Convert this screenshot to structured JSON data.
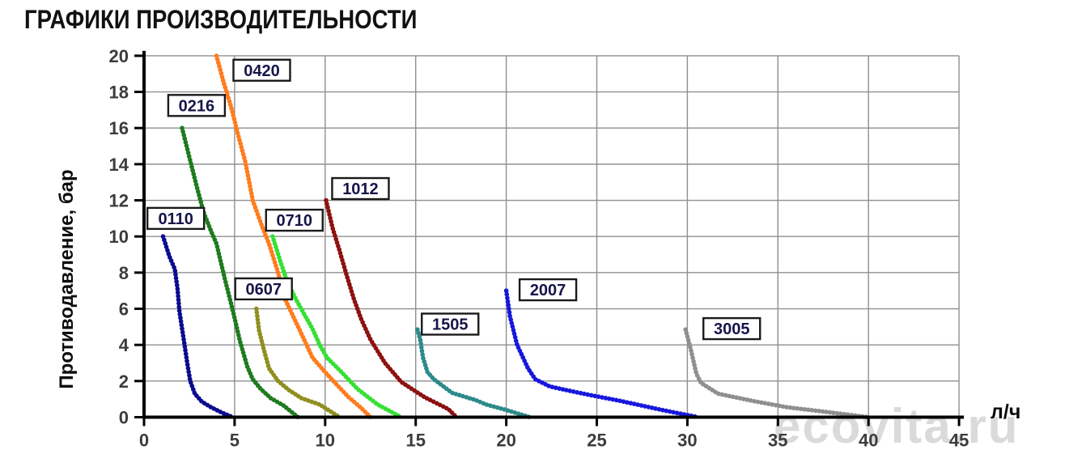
{
  "page": {
    "title": "ГРАФИКИ ПРОИЗВОДИТЕЛЬНОСТИ",
    "watermark": "ecovita.ru"
  },
  "chart_data": {
    "type": "line",
    "title": "ГРАФИКИ ПРОИЗВОДИТЕЛЬНОСТИ",
    "xlabel": "л/ч",
    "ylabel": "Противодавление, бар",
    "xlim": [
      0,
      45
    ],
    "ylim": [
      0,
      20
    ],
    "x_ticks": [
      0,
      5,
      10,
      15,
      20,
      25,
      30,
      35,
      40,
      45
    ],
    "y_ticks": [
      0,
      2,
      4,
      6,
      8,
      10,
      12,
      14,
      16,
      18,
      20
    ],
    "grid": true,
    "legend_position": "boxed labels next to each curve",
    "grid_color": "#8f8f8f",
    "axis_color": "#000000",
    "tick_label_color": "#3c3c3c",
    "series_label_text_color": "#15154a",
    "series": [
      {
        "name": "0110",
        "color": "#0b0b8f",
        "label_pos": [
          1.75,
          11.0
        ],
        "points": [
          [
            1.05,
            10
          ],
          [
            1.4,
            8.9
          ],
          [
            1.7,
            8.2
          ],
          [
            1.85,
            7.1
          ],
          [
            1.95,
            5.9
          ],
          [
            2.1,
            4.9
          ],
          [
            2.25,
            3.9
          ],
          [
            2.4,
            2.9
          ],
          [
            2.55,
            2.0
          ],
          [
            2.8,
            1.3
          ],
          [
            3.2,
            0.85
          ],
          [
            3.7,
            0.55
          ],
          [
            4.3,
            0.25
          ],
          [
            4.9,
            0
          ]
        ]
      },
      {
        "name": "0216",
        "color": "#1e7b1e",
        "label_pos": [
          2.9,
          17.25
        ],
        "points": [
          [
            2.1,
            16
          ],
          [
            2.5,
            14.4
          ],
          [
            2.9,
            12.8
          ],
          [
            3.3,
            11.3
          ],
          [
            3.7,
            10.3
          ],
          [
            4.0,
            9.6
          ],
          [
            4.45,
            7.7
          ],
          [
            4.9,
            5.9
          ],
          [
            5.3,
            4.2
          ],
          [
            5.7,
            2.8
          ],
          [
            6.0,
            2.1
          ],
          [
            6.45,
            1.55
          ],
          [
            7.0,
            1.05
          ],
          [
            7.7,
            0.65
          ],
          [
            8.5,
            0
          ]
        ]
      },
      {
        "name": "0420",
        "color": "#ff7c1e",
        "label_pos": [
          6.5,
          19.2
        ],
        "points": [
          [
            4.0,
            20
          ],
          [
            4.4,
            18.5
          ],
          [
            4.8,
            17.2
          ],
          [
            5.2,
            15.6
          ],
          [
            5.6,
            14.1
          ],
          [
            6.0,
            12.0
          ],
          [
            6.5,
            10.6
          ],
          [
            6.9,
            9.6
          ],
          [
            7.4,
            8.0
          ],
          [
            7.8,
            6.5
          ],
          [
            8.6,
            4.8
          ],
          [
            9.3,
            3.3
          ],
          [
            9.9,
            2.6
          ],
          [
            10.5,
            1.95
          ],
          [
            11.3,
            1.1
          ],
          [
            12.0,
            0.5
          ],
          [
            12.5,
            0
          ]
        ]
      },
      {
        "name": "0607",
        "color": "#8f8f1f",
        "label_pos": [
          6.6,
          7.1
        ],
        "points": [
          [
            6.2,
            6.0
          ],
          [
            6.35,
            4.8
          ],
          [
            6.6,
            3.8
          ],
          [
            6.9,
            2.7
          ],
          [
            7.4,
            2.0
          ],
          [
            8.0,
            1.5
          ],
          [
            8.7,
            1.05
          ],
          [
            9.7,
            0.7
          ],
          [
            10.8,
            0
          ]
        ]
      },
      {
        "name": "0710",
        "color": "#35e035",
        "label_pos": [
          8.3,
          10.9
        ],
        "points": [
          [
            7.1,
            10
          ],
          [
            7.5,
            8.7
          ],
          [
            7.9,
            7.5
          ],
          [
            8.4,
            6.5
          ],
          [
            8.9,
            5.6
          ],
          [
            9.3,
            4.9
          ],
          [
            9.7,
            4.0
          ],
          [
            10.1,
            3.3
          ],
          [
            10.9,
            2.5
          ],
          [
            11.8,
            1.55
          ],
          [
            12.9,
            0.7
          ],
          [
            14.2,
            0
          ]
        ]
      },
      {
        "name": "1012",
        "color": "#8c1111",
        "label_pos": [
          11.95,
          12.65
        ],
        "points": [
          [
            10.05,
            12
          ],
          [
            10.4,
            10.5
          ],
          [
            10.8,
            9.2
          ],
          [
            11.2,
            7.8
          ],
          [
            11.6,
            6.5
          ],
          [
            12.0,
            5.4
          ],
          [
            12.5,
            4.3
          ],
          [
            13.3,
            3.0
          ],
          [
            14.2,
            1.95
          ],
          [
            15.5,
            1.1
          ],
          [
            16.8,
            0.45
          ],
          [
            17.25,
            0
          ]
        ]
      },
      {
        "name": "1505",
        "color": "#2d8a8a",
        "label_pos": [
          16.9,
          5.15
        ],
        "points": [
          [
            15.1,
            4.85
          ],
          [
            15.25,
            4.3
          ],
          [
            15.4,
            3.3
          ],
          [
            15.65,
            2.5
          ],
          [
            16.0,
            2.1
          ],
          [
            17.0,
            1.35
          ],
          [
            18.3,
            0.95
          ],
          [
            18.9,
            0.7
          ],
          [
            20.0,
            0.4
          ],
          [
            21.3,
            0
          ]
        ]
      },
      {
        "name": "2007",
        "color": "#1717dd",
        "label_pos": [
          22.3,
          7.05
        ],
        "points": [
          [
            20.0,
            7.0
          ],
          [
            20.2,
            5.6
          ],
          [
            20.6,
            4.0
          ],
          [
            21.2,
            2.7
          ],
          [
            21.6,
            2.1
          ],
          [
            22.4,
            1.7
          ],
          [
            23.3,
            1.5
          ],
          [
            24.5,
            1.25
          ],
          [
            26.3,
            0.9
          ],
          [
            28.6,
            0.4
          ],
          [
            30.6,
            0
          ]
        ]
      },
      {
        "name": "3005",
        "color": "#8f8f8f",
        "label_pos": [
          32.45,
          4.9
        ],
        "points": [
          [
            29.9,
            4.85
          ],
          [
            30.2,
            3.7
          ],
          [
            30.5,
            2.4
          ],
          [
            30.75,
            1.9
          ],
          [
            31.7,
            1.3
          ],
          [
            33.6,
            0.9
          ],
          [
            35.5,
            0.55
          ],
          [
            37.6,
            0.3
          ],
          [
            40.0,
            0
          ]
        ]
      }
    ]
  }
}
